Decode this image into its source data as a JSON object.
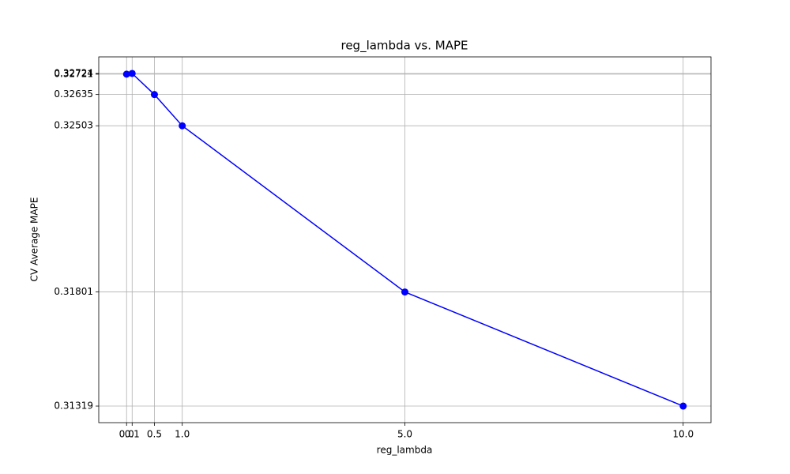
{
  "chart_data": {
    "type": "line",
    "title": "reg_lambda vs. MAPE",
    "x_label": "reg_lambda",
    "y_label": "CV Average MAPE",
    "x": [
      0,
      0.1,
      0.5,
      1.0,
      5.0,
      10.0
    ],
    "series": [
      {
        "name": "CV Average MAPE",
        "color": "#0000ff",
        "values": [
          0.32721,
          0.32724,
          0.32635,
          0.32503,
          0.31801,
          0.31319
        ]
      }
    ],
    "xlim": [
      -0.5,
      10.5
    ],
    "xticks": [
      {
        "value": 0,
        "label": "0.0"
      },
      0.1,
      0.5,
      {
        "value": 1,
        "label": "1.0"
      },
      {
        "value": 5,
        "label": "5.0"
      },
      {
        "value": 10,
        "label": "10.0"
      }
    ],
    "ylim": [
      0.31249,
      0.32794
    ],
    "yticks": [
      0.31319,
      0.31801,
      0.32503,
      0.32635,
      0.32721,
      0.32724
    ],
    "grid": true
  }
}
